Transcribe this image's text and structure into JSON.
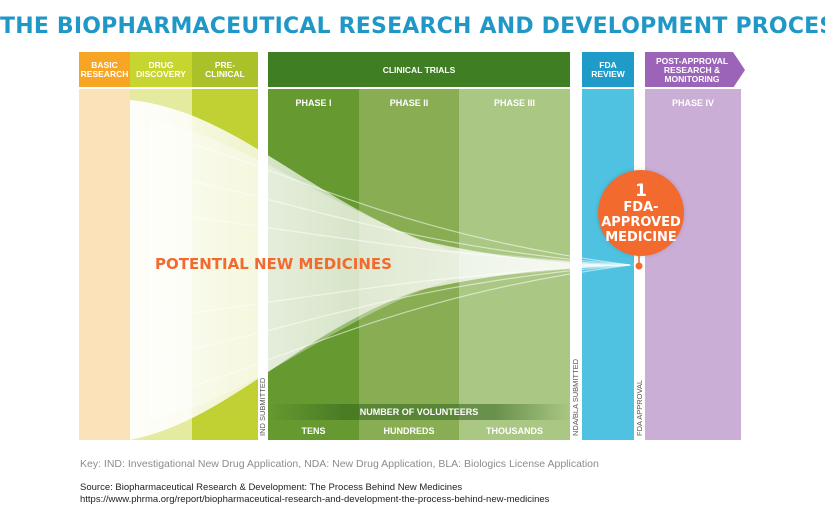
{
  "title": "THE BIOPHARMACEUTICAL RESEARCH AND DEVELOPMENT PROCESS",
  "stages": {
    "basic_research": "BASIC RESEARCH",
    "drug_discovery": "DRUG DISCOVERY",
    "pre_clinical": "PRE-CLINICAL",
    "clinical_trials": "CLINICAL TRIALS",
    "fda_review": "FDA REVIEW",
    "post_approval": "POST-APPROVAL RESEARCH & MONITORING"
  },
  "phases": {
    "phase1": "PHASE I",
    "phase2": "PHASE II",
    "phase3": "PHASE III",
    "phase4": "PHASE IV"
  },
  "milestones": {
    "ind": "IND SUBMITTED",
    "nda_bla": "NDA/BLA SUBMITTED",
    "fda_approval": "FDA APPROVAL"
  },
  "volunteers": {
    "label": "NUMBER OF VOLUNTEERS",
    "phase1": "TENS",
    "phase2": "HUNDREDS",
    "phase3": "THOUSANDS"
  },
  "funnel_label": "POTENTIAL NEW MEDICINES",
  "result": {
    "number": "1",
    "line1": "FDA-",
    "line2": "APPROVED",
    "line3": "MEDICINE"
  },
  "key": "Key: IND: Investigational New Drug Application, NDA: New Drug Application, BLA: Biologics License Application",
  "source": {
    "line1": "Source: Biopharmaceutical Research & Development: The Process Behind New Medicines",
    "line2": "https://www.phrma.org/report/biopharmaceutical-research-and-development-the-process-behind-new-medicines"
  },
  "colors": {
    "title": "#1f98c8",
    "basic": "#f7a525",
    "discovery": "#c7d530",
    "preclinical": "#aac12a",
    "clinical_header": "#3f7e22",
    "phase1": "#66992f",
    "phase2": "#88ad52",
    "phase3": "#aac784",
    "fda": "#4ec2e0",
    "post": "#b493c7",
    "accent": "#f26a2e"
  }
}
